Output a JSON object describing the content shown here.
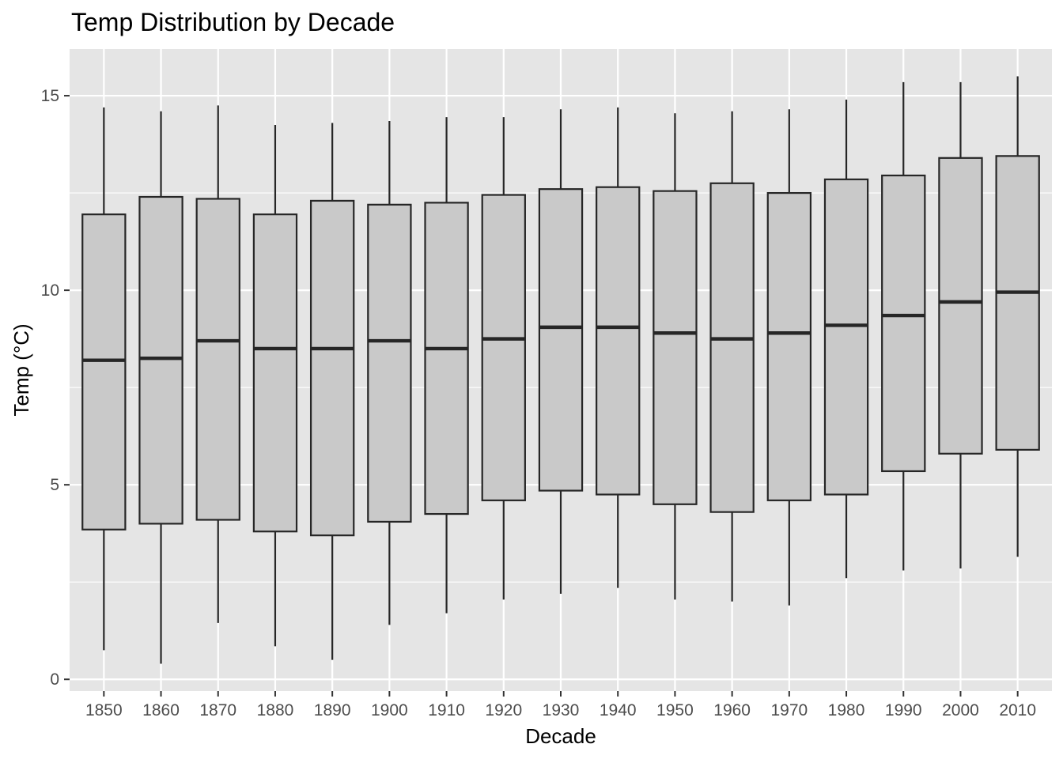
{
  "chart_data": {
    "type": "box",
    "title": "Temp Distribution by Decade",
    "xlabel": "Decade",
    "ylabel": "Temp (°C)",
    "ylim": [
      -0.3,
      16.2
    ],
    "yticks": [
      0,
      5,
      10,
      15
    ],
    "grid": true,
    "legend": "none",
    "colors": {
      "panel": "#e5e5e5",
      "grid": "#ffffff",
      "box_fill": "#c9c9c9",
      "box_stroke": "#262626",
      "tick_text": "#4d4d4d"
    },
    "categories": [
      "1850",
      "1860",
      "1870",
      "1880",
      "1890",
      "1900",
      "1910",
      "1920",
      "1930",
      "1940",
      "1950",
      "1960",
      "1970",
      "1980",
      "1990",
      "2000",
      "2010"
    ],
    "boxes": [
      {
        "min": 0.75,
        "q1": 3.85,
        "median": 8.2,
        "q3": 11.95,
        "max": 14.7
      },
      {
        "min": 0.4,
        "q1": 4.0,
        "median": 8.25,
        "q3": 12.4,
        "max": 14.6
      },
      {
        "min": 1.45,
        "q1": 4.1,
        "median": 8.7,
        "q3": 12.35,
        "max": 14.75
      },
      {
        "min": 0.85,
        "q1": 3.8,
        "median": 8.5,
        "q3": 11.95,
        "max": 14.25
      },
      {
        "min": 0.5,
        "q1": 3.7,
        "median": 8.5,
        "q3": 12.3,
        "max": 14.3
      },
      {
        "min": 1.4,
        "q1": 4.05,
        "median": 8.7,
        "q3": 12.2,
        "max": 14.35
      },
      {
        "min": 1.7,
        "q1": 4.25,
        "median": 8.5,
        "q3": 12.25,
        "max": 14.45
      },
      {
        "min": 2.05,
        "q1": 4.6,
        "median": 8.75,
        "q3": 12.45,
        "max": 14.45
      },
      {
        "min": 2.2,
        "q1": 4.85,
        "median": 9.05,
        "q3": 12.6,
        "max": 14.65
      },
      {
        "min": 2.35,
        "q1": 4.75,
        "median": 9.05,
        "q3": 12.65,
        "max": 14.7
      },
      {
        "min": 2.05,
        "q1": 4.5,
        "median": 8.9,
        "q3": 12.55,
        "max": 14.55
      },
      {
        "min": 2.0,
        "q1": 4.3,
        "median": 8.75,
        "q3": 12.75,
        "max": 14.6
      },
      {
        "min": 1.9,
        "q1": 4.6,
        "median": 8.9,
        "q3": 12.5,
        "max": 14.65
      },
      {
        "min": 2.6,
        "q1": 4.75,
        "median": 9.1,
        "q3": 12.85,
        "max": 14.9
      },
      {
        "min": 2.8,
        "q1": 5.35,
        "median": 9.35,
        "q3": 12.95,
        "max": 15.35
      },
      {
        "min": 2.85,
        "q1": 5.8,
        "median": 9.7,
        "q3": 13.4,
        "max": 15.35
      },
      {
        "min": 3.15,
        "q1": 5.9,
        "median": 9.95,
        "q3": 13.45,
        "max": 15.5
      }
    ]
  }
}
